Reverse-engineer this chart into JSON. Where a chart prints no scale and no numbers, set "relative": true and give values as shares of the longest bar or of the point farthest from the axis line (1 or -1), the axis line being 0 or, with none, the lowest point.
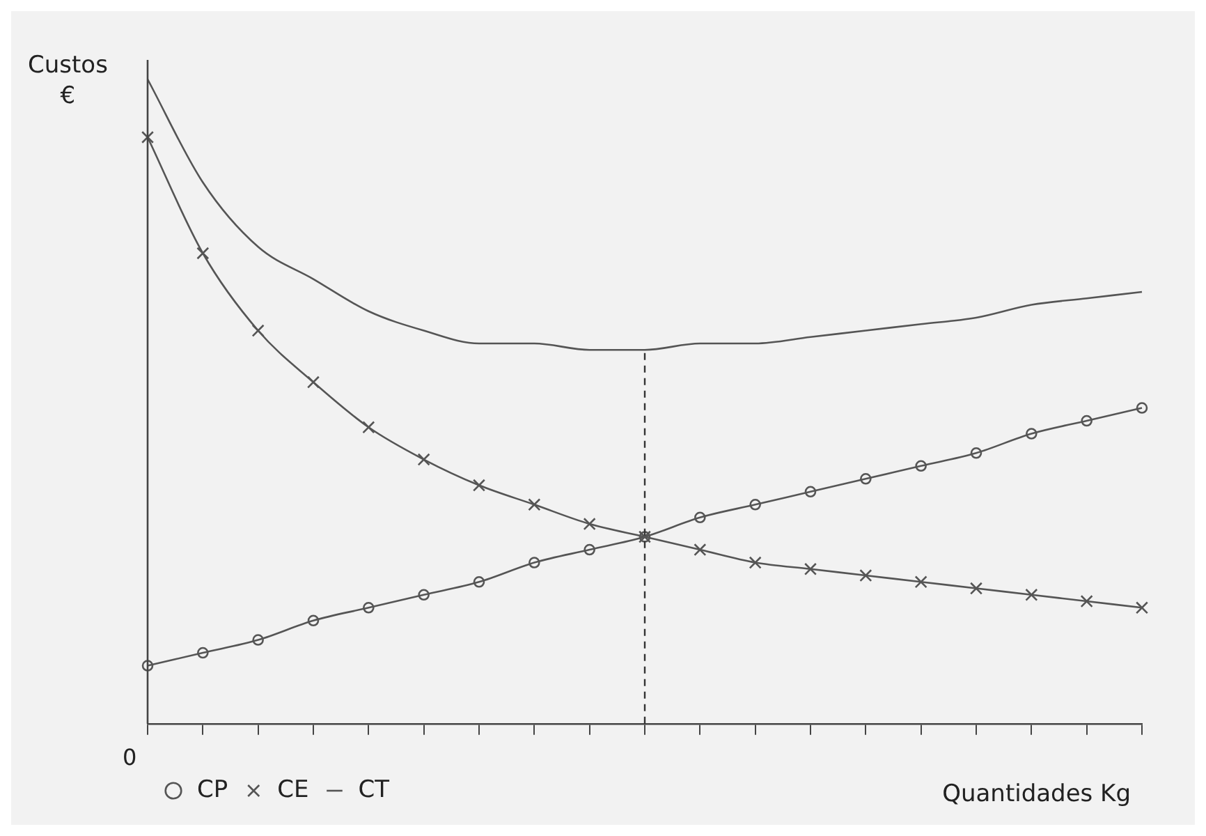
{
  "chart_data": {
    "type": "line",
    "relative": true,
    "ylabel": "Custos\n€",
    "xlabel": "Quantidades Kg",
    "annotations": [
      "0"
    ],
    "categories": [
      null,
      null,
      null,
      null,
      null,
      null,
      null,
      null,
      null,
      null,
      null,
      null,
      null,
      null,
      null,
      null,
      null,
      null,
      null
    ],
    "series": [
      {
        "name": "CP",
        "color": "#555555",
        "marker": "circle",
        "values": [
          0.09,
          0.11,
          0.13,
          0.16,
          0.18,
          0.2,
          0.22,
          0.25,
          0.27,
          0.29,
          0.32,
          0.34,
          0.36,
          0.38,
          0.4,
          0.42,
          0.45,
          0.47,
          0.49
        ]
      },
      {
        "name": "CE",
        "color": "#555555",
        "marker": "cross",
        "values": [
          0.91,
          0.73,
          0.61,
          0.53,
          0.46,
          0.41,
          0.37,
          0.34,
          0.31,
          0.29,
          0.27,
          0.25,
          0.24,
          0.23,
          0.22,
          0.21,
          0.2,
          0.19,
          0.18
        ]
      },
      {
        "name": "CT",
        "color": "#555555",
        "marker": "none",
        "values": [
          1.0,
          0.84,
          0.74,
          0.69,
          0.64,
          0.61,
          0.59,
          0.59,
          0.58,
          0.58,
          0.59,
          0.59,
          0.6,
          0.61,
          0.62,
          0.63,
          0.65,
          0.66,
          0.67
        ]
      }
    ],
    "legend": "bottom left",
    "grid": false
  }
}
